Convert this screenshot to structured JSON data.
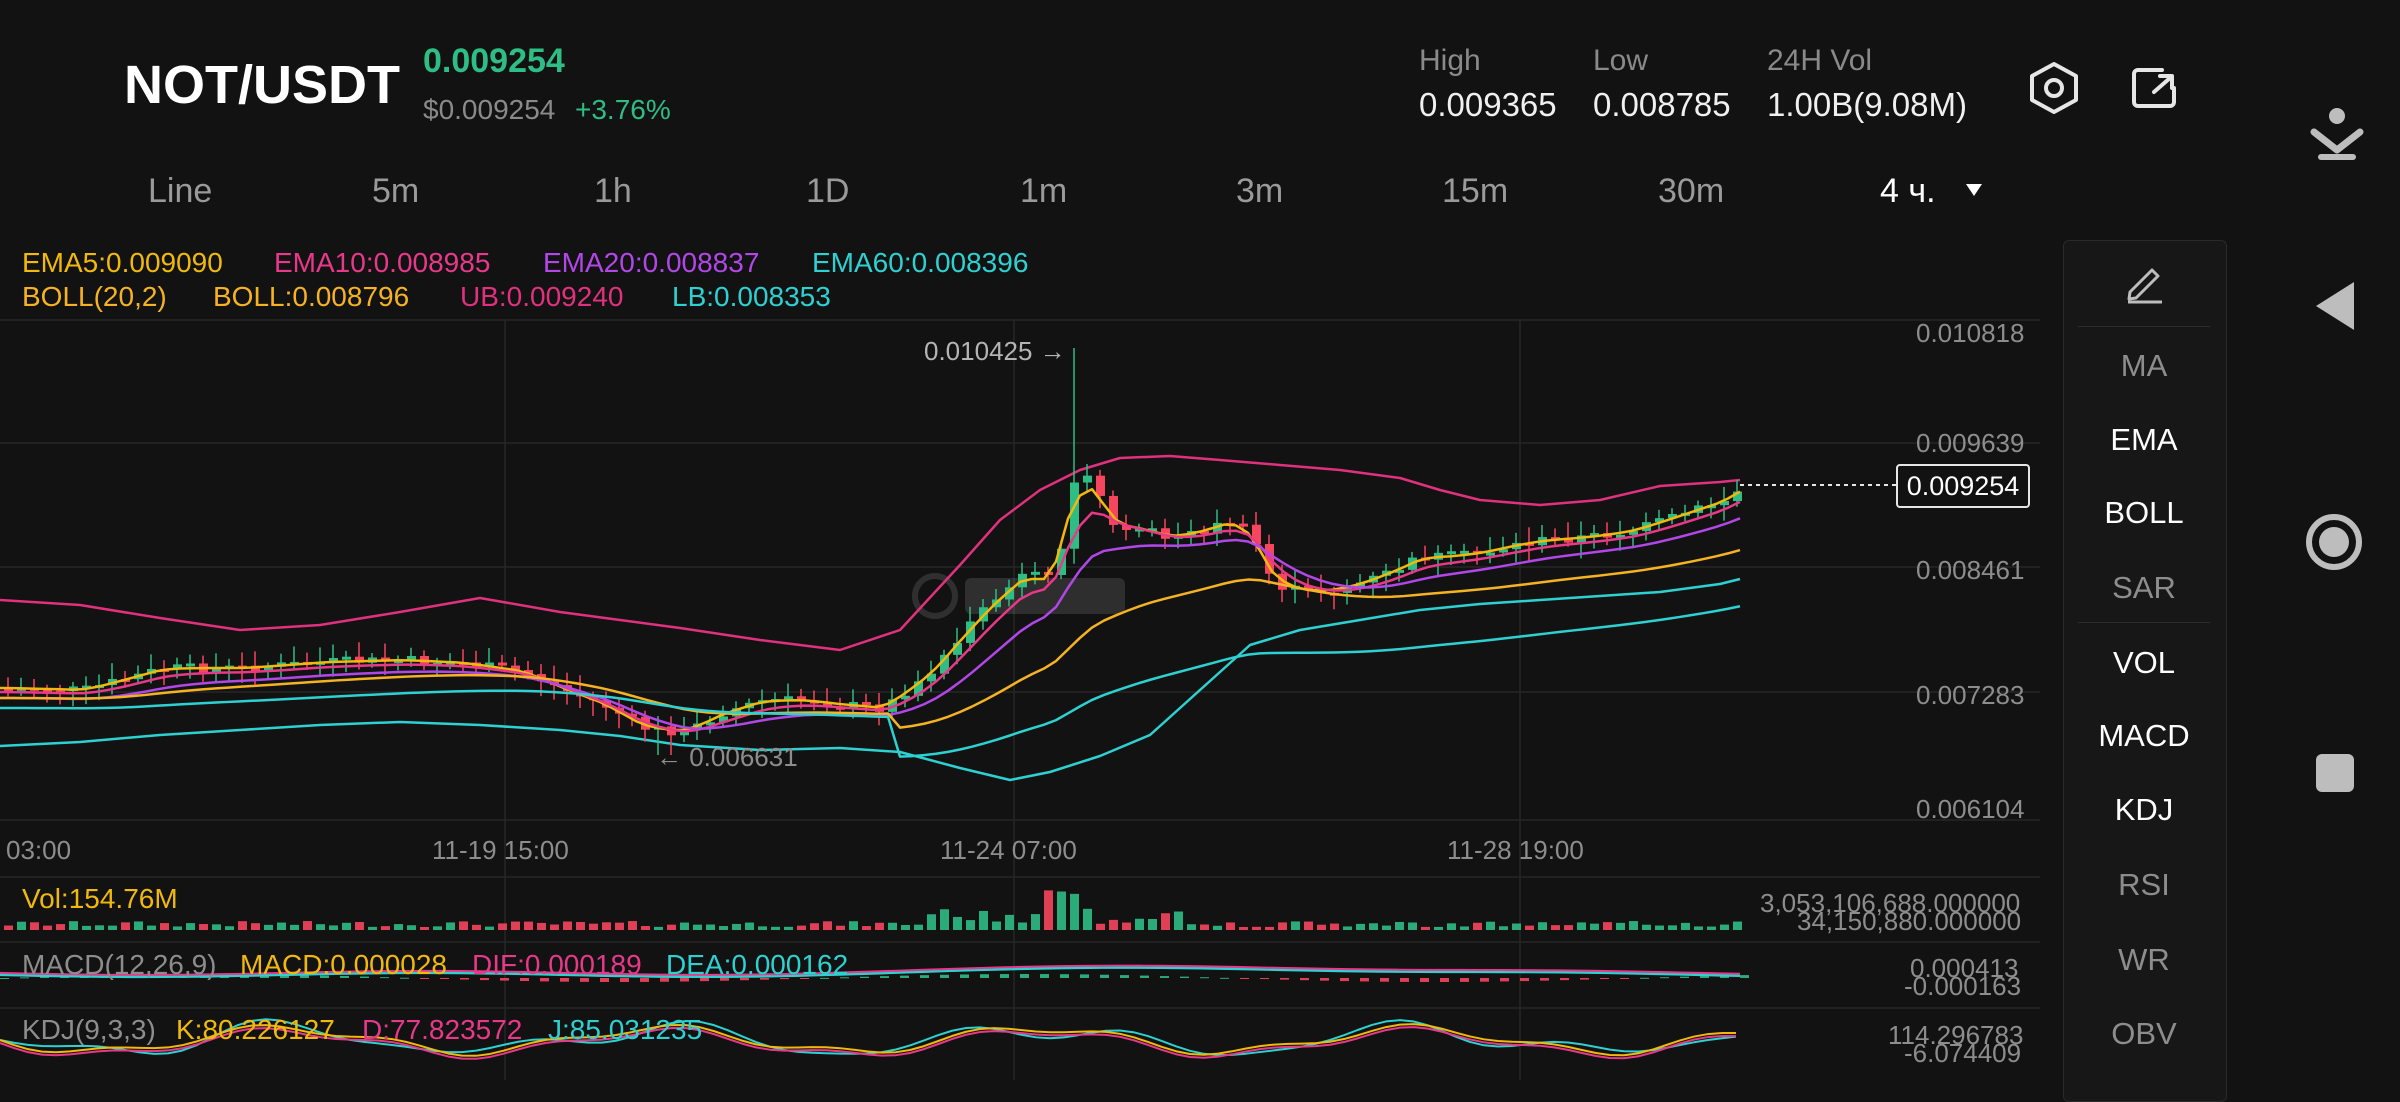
{
  "header": {
    "pair": "NOT/USDT",
    "price": "0.009254",
    "fiat_price": "$0.009254",
    "change": "+3.76%",
    "stats": [
      {
        "label": "High",
        "value": "0.009365"
      },
      {
        "label": "Low",
        "value": "0.008785"
      },
      {
        "label": "24H Vol",
        "value": "1.00B(9.08M)"
      }
    ]
  },
  "timeframes": [
    "Line",
    "5m",
    "1h",
    "1D",
    "1m",
    "3m",
    "15m",
    "30m",
    "4 ч."
  ],
  "active_timeframe": "4 ч.",
  "legend": {
    "row1": [
      "EMA5:0.009090",
      "EMA10:0.008985",
      "EMA20:0.008837",
      "EMA60:0.008396"
    ],
    "row2": [
      "BOLL(20,2)",
      "BOLL:0.008796",
      "UB:0.009240",
      "LB:0.008353"
    ]
  },
  "price_axis": [
    "0.010818",
    "0.009639",
    "0.008461",
    "0.007283",
    "0.006104"
  ],
  "time_axis": [
    "03:00",
    "11-19 15:00",
    "11-24 07:00",
    "11-28 19:00"
  ],
  "annotations": {
    "high": "0.010425 →",
    "low": "← 0.006631",
    "current": "0.009254"
  },
  "volume": {
    "label": "Vol:154.76M",
    "axis_top": "3,053,106,688.000000",
    "axis_bottom": "34,150,880.000000"
  },
  "macd": {
    "labels": [
      "MACD(12,26,9)",
      "MACD:0.000028",
      "DIF:0.000189",
      "DEA:0.000162"
    ],
    "axis_top": "0.000413",
    "axis_bottom": "-0.000163"
  },
  "kdj": {
    "labels": [
      "KDJ(9,3,3)",
      "K:80.226127",
      "D:77.823572",
      "J:85.031235"
    ],
    "axis_top": "114.296783",
    "axis_bottom": "-6.074409"
  },
  "indicators": [
    {
      "label": "MA",
      "active": false
    },
    {
      "label": "EMA",
      "active": true
    },
    {
      "label": "BOLL",
      "active": true
    },
    {
      "label": "SAR",
      "active": false
    },
    {
      "label": "VOL",
      "active": true
    },
    {
      "label": "MACD",
      "active": true
    },
    {
      "label": "KDJ",
      "active": true
    },
    {
      "label": "RSI",
      "active": false
    },
    {
      "label": "WR",
      "active": false
    },
    {
      "label": "OBV",
      "active": false
    }
  ],
  "colors": {
    "up": "#2ebd85",
    "down": "#f6465d",
    "ema5": "#f0b90b",
    "ema10": "#e8388a",
    "ema20": "#b247e8",
    "ema60": "#2ed1d1",
    "boll_mid": "#f5b324",
    "boll_band": "#e0317f"
  },
  "icons": {
    "settings": "settings-hexagon-icon",
    "fullscreen": "fullscreen-toggle-icon",
    "draw": "pencil-icon",
    "dropdown": "caret-down-icon",
    "nav_download": "download-arrow-icon",
    "nav_back": "back-triangle-icon",
    "nav_home": "home-circle-icon",
    "nav_recents": "recents-square-icon"
  }
}
